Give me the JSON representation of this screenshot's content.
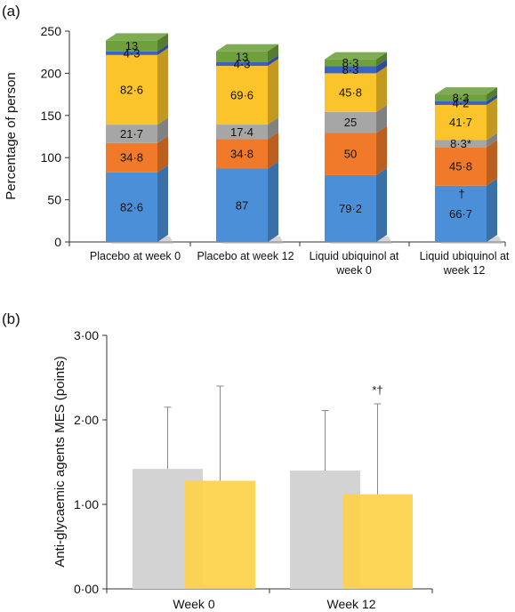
{
  "chart_data": [
    {
      "panel": "(a)",
      "type": "bar",
      "stacked": true,
      "ylabel": "Percentage of person",
      "ylim": [
        0,
        250
      ],
      "yticks": [
        "0",
        "50",
        "100",
        "150",
        "200",
        "250"
      ],
      "categories": [
        [
          "Placebo at week 0"
        ],
        [
          "Placebo  at week 12"
        ],
        [
          "Liquid ubiquinol  at",
          "week 0"
        ],
        [
          "Liquid ubiquinol  at",
          "week 12"
        ]
      ],
      "series": [
        {
          "color": "#4a8fd8",
          "values": [
            82.6,
            87,
            79.2,
            66.7
          ],
          "labels": [
            "82·6",
            "87",
            "79·2",
            "66·7"
          ]
        },
        {
          "color": "#f07a2a",
          "values": [
            34.8,
            34.8,
            50,
            45.8
          ],
          "labels": [
            "34·8",
            "34·8",
            "50",
            "45·8"
          ]
        },
        {
          "color": "#a6a6a6",
          "values": [
            21.7,
            17.4,
            25,
            8.3
          ],
          "labels": [
            "21·7",
            "17·4",
            "25",
            "8·3*"
          ]
        },
        {
          "color": "#fbc42b",
          "values": [
            82.6,
            69.6,
            45.8,
            41.7
          ],
          "labels": [
            "82·6",
            "69·6",
            "45·8",
            "41·7"
          ]
        },
        {
          "color": "#3b63c4",
          "values": [
            4.3,
            4.3,
            8.3,
            4.2
          ],
          "labels": [
            "4·3",
            "4·3",
            "8·3",
            "4·2"
          ]
        },
        {
          "color": "#6ea03c",
          "values": [
            13,
            13,
            8.3,
            8.3
          ],
          "labels": [
            "13",
            "13",
            "8·3",
            "8·3"
          ]
        }
      ],
      "annotations": [
        {
          "category_index": 3,
          "text": "†"
        }
      ]
    },
    {
      "panel": "(b)",
      "type": "bar",
      "ylabel": "Anti-glycaemic agents MES (points)",
      "ylim": [
        0,
        3
      ],
      "yticks": [
        "0·00",
        "1·00",
        "2·00",
        "3·00"
      ],
      "categories": [
        "Week 0",
        "Week 12"
      ],
      "series": [
        {
          "color": "#d3d3d3",
          "values": [
            1.42,
            1.4
          ],
          "error_upper": [
            2.15,
            2.11
          ]
        },
        {
          "color": "#fdd24a",
          "values": [
            1.28,
            1.12
          ],
          "error_upper": [
            2.4,
            2.19
          ]
        }
      ],
      "annotations": [
        {
          "category_index": 1,
          "series_index": 1,
          "text": "*†"
        }
      ]
    }
  ]
}
